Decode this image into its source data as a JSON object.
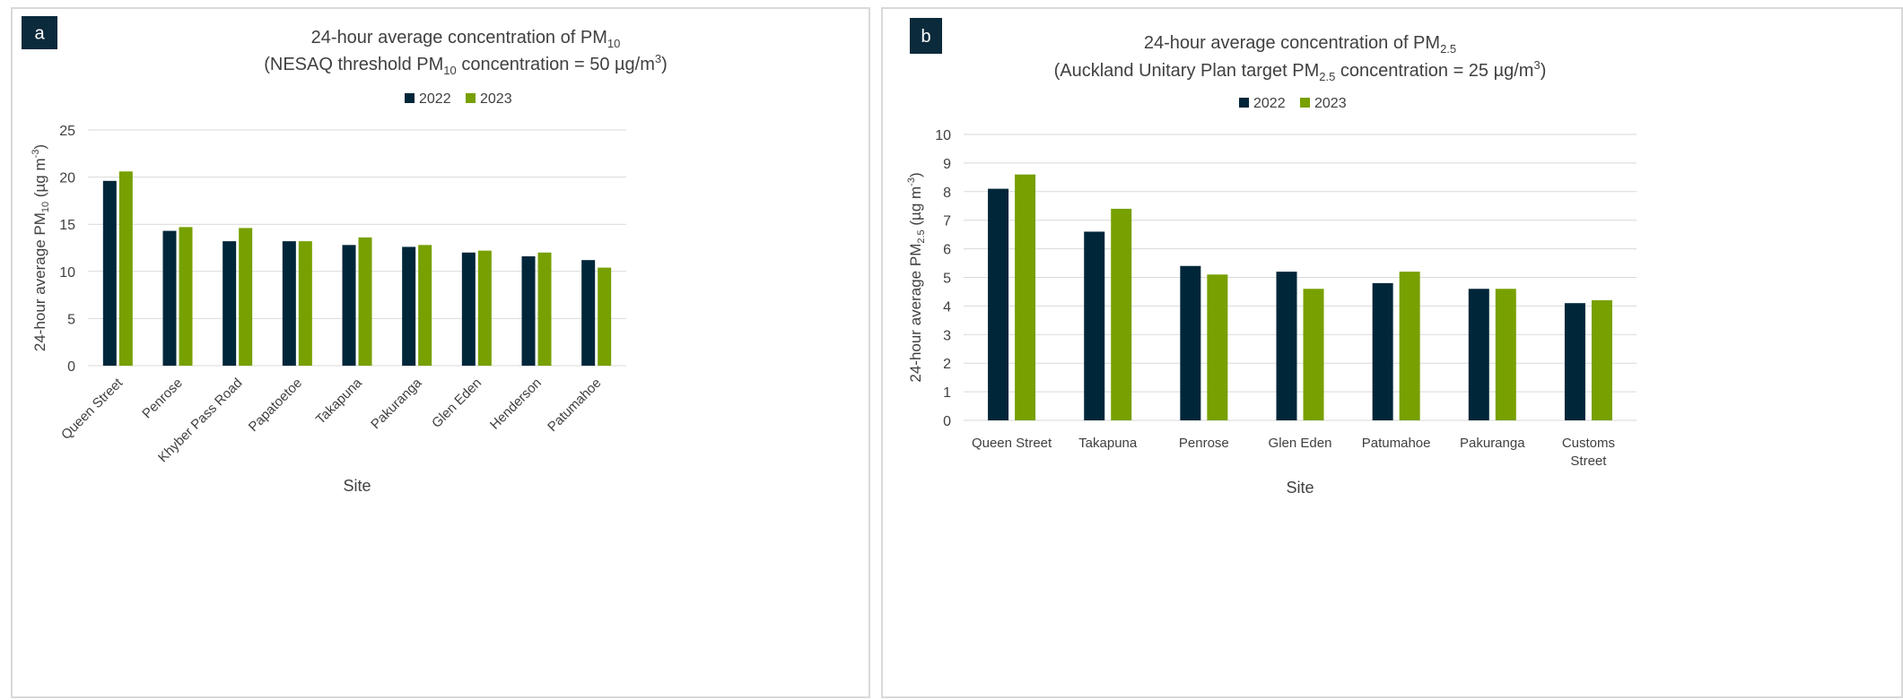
{
  "colors": {
    "series_2022": "#002639",
    "series_2023": "#77a000",
    "grid": "#d9d9d9",
    "badge": "#0b2a3b",
    "text": "#404040"
  },
  "chart_data": [
    {
      "panel_label": "a",
      "type": "bar",
      "title_line1_main": "24-hour average concentration of PM",
      "title_line1_sub": "10",
      "title_line2_pre": "(NESAQ threshold PM",
      "title_line2_sub": "10",
      "title_line2_mid": " concentration = 50 µg/m",
      "title_line2_sup": "3",
      "title_line2_post": ")",
      "ylabel_pre": "24-hour average PM",
      "ylabel_sub": "10",
      "ylabel_post": " (µg m",
      "ylabel_sup": "-3",
      "ylabel_end": ")",
      "xlabel": "Site",
      "ylim": [
        0,
        25
      ],
      "yticks": [
        0,
        5,
        10,
        15,
        20,
        25
      ],
      "grid": true,
      "legend_position": "top-center",
      "categories": [
        "Queen Street",
        "Penrose",
        "Khyber Pass Road",
        "Papatoetoe",
        "Takapuna",
        "Pakuranga",
        "Glen Eden",
        "Henderson",
        "Patumahoe"
      ],
      "series": [
        {
          "name": "2022",
          "values": [
            19.6,
            14.3,
            13.2,
            13.2,
            12.8,
            12.6,
            12.0,
            11.6,
            11.2
          ]
        },
        {
          "name": "2023",
          "values": [
            20.6,
            14.7,
            14.6,
            13.2,
            13.6,
            12.8,
            12.2,
            12.0,
            10.4
          ]
        }
      ]
    },
    {
      "panel_label": "b",
      "type": "bar",
      "title_line1_main": "24-hour average concentration of PM",
      "title_line1_sub": "2.5",
      "title_line2_pre": "(Auckland Unitary Plan target  PM",
      "title_line2_sub": "2.5",
      "title_line2_mid": " concentration = 25 µg/m",
      "title_line2_sup": "3",
      "title_line2_post": ")",
      "ylabel_pre": "24-hour average PM",
      "ylabel_sub": "2.5",
      "ylabel_post": " (µg m",
      "ylabel_sup": "-3",
      "ylabel_end": ")",
      "xlabel": "Site",
      "ylim": [
        0,
        10
      ],
      "yticks": [
        0,
        1,
        2,
        3,
        4,
        5,
        6,
        7,
        8,
        9,
        10
      ],
      "grid": true,
      "legend_position": "top-center",
      "categories": [
        "Queen Street",
        "Takapuna",
        "Penrose",
        "Glen Eden",
        "Patumahoe",
        "Pakuranga",
        "Customs Street"
      ],
      "series": [
        {
          "name": "2022",
          "values": [
            8.1,
            6.6,
            5.4,
            5.2,
            4.8,
            4.6,
            4.1
          ]
        },
        {
          "name": "2023",
          "values": [
            8.6,
            7.4,
            5.1,
            4.6,
            5.2,
            4.6,
            4.2
          ]
        }
      ]
    }
  ]
}
